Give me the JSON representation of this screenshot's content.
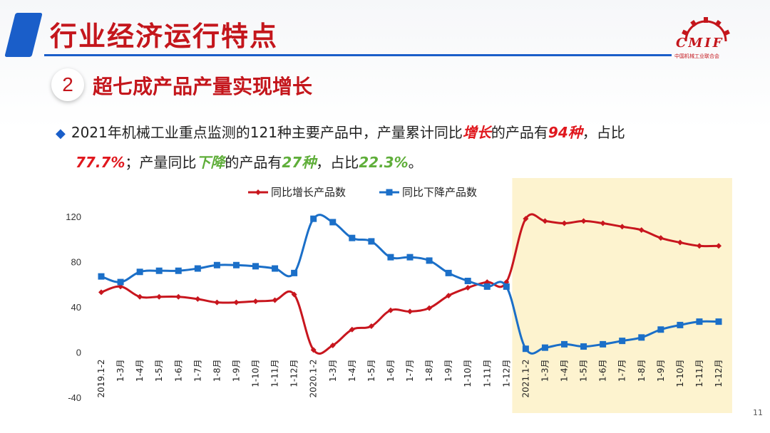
{
  "header": {
    "title": "行业经济运行特点"
  },
  "logo": {
    "text": "CMIF",
    "subtext": "中国机械工业联合会"
  },
  "section": {
    "number": "2",
    "title": "超七成产品产量实现增长"
  },
  "bullet": {
    "t1": "2021年机械工业重点监测的121种主要产品中，产量累计同比",
    "kw_up": "增长",
    "t2": "的产品有",
    "num_up": "94种",
    "t3": "，占比",
    "pct_up": "77.7%",
    "t4": "；产量同比",
    "kw_down": "下降",
    "t5": "的产品有",
    "num_down": "27种",
    "t6": "，占比",
    "pct_down": "22.3%",
    "t7": "。"
  },
  "page_number": "11",
  "colors": {
    "red": "#c8161e",
    "blue": "#1b6fc8",
    "highlight_bg": "#fdf3cf",
    "accent": "#1a5ec9"
  },
  "chart_data": {
    "type": "line",
    "categories": [
      "2019.1-2",
      "1-3月",
      "1-4月",
      "1-5月",
      "1-6月",
      "1-7月",
      "1-8月",
      "1-9月",
      "1-10月",
      "1-11月",
      "1-12月",
      "2020.1-2",
      "1-3月",
      "1-4月",
      "1-5月",
      "1-6月",
      "1-7月",
      "1-8月",
      "1-9月",
      "1-10月",
      "1-11月",
      "1-12月",
      "2021.1-2",
      "1-3月",
      "1-4月",
      "1-5月",
      "1-6月",
      "1-7月",
      "1-8月",
      "1-9月",
      "1-10月",
      "1-11月",
      "1-12月"
    ],
    "series": [
      {
        "name": "同比增长产品数",
        "color": "#c8161e",
        "marker": "diamond",
        "values": [
          53,
          58,
          49,
          49,
          49,
          47,
          44,
          44,
          45,
          46,
          51,
          2,
          6,
          20,
          23,
          37,
          36,
          39,
          50,
          57,
          62,
          62,
          118,
          116,
          114,
          116,
          114,
          111,
          108,
          101,
          97,
          94,
          94
        ]
      },
      {
        "name": "同比下降产品数",
        "color": "#1b6fc8",
        "marker": "square",
        "values": [
          67,
          62,
          71,
          72,
          72,
          74,
          77,
          77,
          76,
          74,
          70,
          118,
          115,
          101,
          98,
          84,
          84,
          81,
          70,
          63,
          58,
          58,
          3,
          4,
          7,
          5,
          7,
          10,
          13,
          20,
          24,
          27,
          27
        ]
      }
    ],
    "ylim": [
      -40,
      120
    ],
    "yticks": [
      -40,
      0,
      40,
      80,
      120
    ],
    "highlight_from": "2021.1-2",
    "legend": "top-center"
  }
}
